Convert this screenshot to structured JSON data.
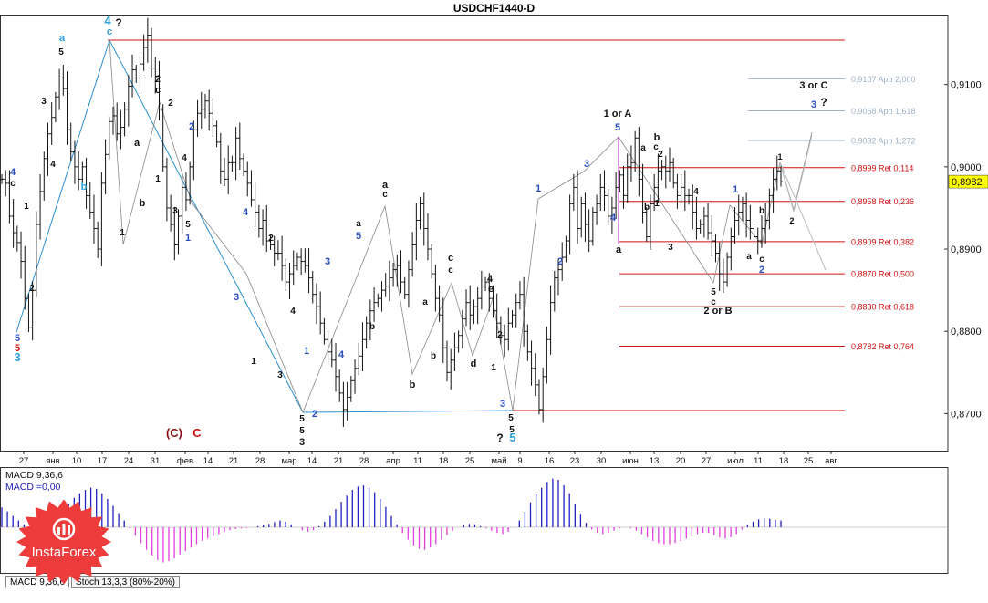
{
  "title": "USDCHF1440-D",
  "chart_data": {
    "type": "candlestick",
    "symbol": "USDCHF",
    "timeframe": "D1",
    "ylim": [
      0.8655,
      0.9185
    ],
    "y_ticks": [
      "0,9100",
      "0,9000",
      "0,8900",
      "0,8800",
      "0,8700"
    ],
    "y_tick_values": [
      0.91,
      0.9,
      0.89,
      0.88,
      0.87
    ],
    "current_price": "0,8982",
    "x_tick_labels": [
      "27",
      "янв",
      "10",
      "17",
      "24",
      "31",
      "фев",
      "14",
      "21",
      "28",
      "мар",
      "14",
      "21",
      "28",
      "апр",
      "11",
      "18",
      "25",
      "май",
      "9",
      "16",
      "23",
      "30",
      "июн",
      "13",
      "20",
      "27",
      "июл",
      "11",
      "18",
      "25",
      "авг"
    ],
    "close_path": [
      0.8985,
      0.898,
      0.894,
      0.892,
      0.8908,
      0.8885,
      0.884,
      0.8805,
      0.885,
      0.893,
      0.897,
      0.901,
      0.904,
      0.906,
      0.9085,
      0.9108,
      0.9095,
      0.9045,
      0.9018,
      0.9,
      0.8985,
      0.9,
      0.8965,
      0.8945,
      0.8925,
      0.89,
      0.898,
      0.9015,
      0.9055,
      0.9062,
      0.904,
      0.9048,
      0.907,
      0.9098,
      0.9118,
      0.9108,
      0.9125,
      0.9145,
      0.916,
      0.912,
      0.911,
      0.907,
      0.9,
      0.895,
      0.893,
      0.8905,
      0.894,
      0.8975,
      0.896,
      0.9,
      0.9045,
      0.9065,
      0.907,
      0.908,
      0.9065,
      0.905,
      0.903,
      0.8995,
      0.8985,
      0.9005,
      0.9005,
      0.9035,
      0.901,
      0.8995,
      0.898,
      0.896,
      0.8945,
      0.8925,
      0.8935,
      0.891,
      0.8905,
      0.8895,
      0.8895,
      0.888,
      0.886,
      0.887,
      0.888,
      0.889,
      0.8885,
      0.888,
      0.8865,
      0.8845,
      0.883,
      0.881,
      0.879,
      0.8775,
      0.8765,
      0.8745,
      0.8725,
      0.8705,
      0.872,
      0.874,
      0.8755,
      0.877,
      0.879,
      0.881,
      0.8825,
      0.8835,
      0.884,
      0.885,
      0.8855,
      0.8865,
      0.8875,
      0.888,
      0.886,
      0.8845,
      0.8875,
      0.8905,
      0.8935,
      0.8955,
      0.8925,
      0.89,
      0.887,
      0.884,
      0.882,
      0.878,
      0.875,
      0.8765,
      0.878,
      0.8795,
      0.8815,
      0.8835,
      0.882,
      0.883,
      0.884,
      0.8855,
      0.886,
      0.884,
      0.8825,
      0.881,
      0.8795,
      0.879,
      0.881,
      0.882,
      0.8835,
      0.8845,
      0.88,
      0.8775,
      0.8755,
      0.8735,
      0.8705,
      0.8745,
      0.879,
      0.8835,
      0.8865,
      0.8875,
      0.889,
      0.891,
      0.8955,
      0.8975,
      0.8925,
      0.8955,
      0.893,
      0.891,
      0.8945,
      0.8955,
      0.8975,
      0.8965,
      0.894,
      0.895,
      0.8975,
      0.899,
      0.8965,
      0.9,
      0.9005,
      0.9035,
      0.8985,
      0.8945,
      0.8915,
      0.8955,
      0.8975,
      0.8995,
      0.9,
      0.8995,
      0.9005,
      0.898,
      0.8965,
      0.8975,
      0.8965,
      0.8965,
      0.8945,
      0.8925,
      0.893,
      0.894,
      0.892,
      0.891,
      0.8895,
      0.887,
      0.886,
      0.889,
      0.8915,
      0.8935,
      0.8945,
      0.8955,
      0.8935,
      0.8925,
      0.8915,
      0.891,
      0.8925,
      0.8935,
      0.8965,
      0.8985,
      0.8995,
      0.8982
    ],
    "price_levels": [
      {
        "value": 0.9107,
        "label": "0,9107 App 2,000",
        "color": "#9fb3c8"
      },
      {
        "value": 0.9068,
        "label": "0,9068 App 1,618",
        "color": "#9fb3c8"
      },
      {
        "value": 0.9032,
        "label": "0,9032 App 1,272",
        "color": "#9fb3c8"
      },
      {
        "value": 0.8999,
        "label": "0,8999 Ret 0,114",
        "color": "#d01010"
      },
      {
        "value": 0.8958,
        "label": "0,8958 Ret 0,236",
        "color": "#d01010"
      },
      {
        "value": 0.8909,
        "label": "0,8909 Ret 0,382",
        "color": "#d01010"
      },
      {
        "value": 0.887,
        "label": "0,8870 Ret 0,500",
        "color": "#d01010"
      },
      {
        "value": 0.883,
        "label": "0,8830 Ret 0,618",
        "color": "#d01010"
      },
      {
        "value": 0.8782,
        "label": "0,8782 Ret 0,764",
        "color": "#d01010"
      }
    ],
    "annotations": [
      {
        "text": "4",
        "x": 118,
        "y": 27,
        "color": "#2aa0d8",
        "size": 13
      },
      {
        "text": "?",
        "x": 130,
        "y": 29,
        "color": "#111",
        "size": 12
      },
      {
        "text": "c",
        "x": 120,
        "y": 38,
        "color": "#2aa0d8",
        "size": 11
      },
      {
        "text": "a",
        "x": 68,
        "y": 45,
        "color": "#2aa0d8",
        "size": 11
      },
      {
        "text": "5",
        "x": 67,
        "y": 60,
        "color": "#111",
        "size": 10
      },
      {
        "text": "3",
        "x": 48,
        "y": 114,
        "color": "#111",
        "size": 10
      },
      {
        "text": "4",
        "x": 58,
        "y": 183,
        "color": "#111",
        "size": 10
      },
      {
        "text": "4",
        "x": 14,
        "y": 192,
        "color": "#2a4fc0",
        "size": 11
      },
      {
        "text": "c",
        "x": 14,
        "y": 204,
        "color": "#111",
        "size": 10
      },
      {
        "text": "b",
        "x": 92,
        "y": 208,
        "color": "#2aa0d8",
        "size": 11
      },
      {
        "text": "1",
        "x": 29,
        "y": 229,
        "color": "#111",
        "size": 10
      },
      {
        "text": "2",
        "x": 35,
        "y": 319,
        "color": "#111",
        "size": 10
      },
      {
        "text": "5",
        "x": 19,
        "y": 374,
        "color": "#2a4fc0",
        "size": 11
      },
      {
        "text": "5",
        "x": 19,
        "y": 385,
        "color": "#d01010",
        "size": 11
      },
      {
        "text": "3",
        "x": 19,
        "y": 396,
        "color": "#2aa0d8",
        "size": 13
      },
      {
        "text": "2",
        "x": 173,
        "y": 90,
        "color": "#111",
        "size": 11
      },
      {
        "text": "c",
        "x": 173,
        "y": 102,
        "color": "#111",
        "size": 11
      },
      {
        "text": "2",
        "x": 187,
        "y": 116,
        "color": "#111",
        "size": 10
      },
      {
        "text": "a",
        "x": 150,
        "y": 160,
        "color": "#111",
        "size": 11
      },
      {
        "text": "2",
        "x": 210,
        "y": 142,
        "color": "#2a4fc0",
        "size": 11
      },
      {
        "text": "1",
        "x": 173,
        "y": 199,
        "color": "#111",
        "size": 10
      },
      {
        "text": "4",
        "x": 202,
        "y": 176,
        "color": "#111",
        "size": 10
      },
      {
        "text": "3",
        "x": 192,
        "y": 234,
        "color": "#111",
        "size": 10
      },
      {
        "text": "5",
        "x": 206,
        "y": 249,
        "color": "#111",
        "size": 10
      },
      {
        "text": "1",
        "x": 206,
        "y": 264,
        "color": "#2a4fc0",
        "size": 11
      },
      {
        "text": "b",
        "x": 156,
        "y": 226,
        "color": "#111",
        "size": 11
      },
      {
        "text": "1",
        "x": 134,
        "y": 258,
        "color": "#111",
        "size": 10
      },
      {
        "text": "4",
        "x": 269,
        "y": 236,
        "color": "#2a4fc0",
        "size": 11
      },
      {
        "text": "2",
        "x": 297,
        "y": 264,
        "color": "#111",
        "size": 10
      },
      {
        "text": "3",
        "x": 259,
        "y": 329,
        "color": "#2a4fc0",
        "size": 11
      },
      {
        "text": "1",
        "x": 278,
        "y": 399,
        "color": "#111",
        "size": 10
      },
      {
        "text": "4",
        "x": 321,
        "y": 344,
        "color": "#111",
        "size": 10
      },
      {
        "text": "3",
        "x": 307,
        "y": 414,
        "color": "#111",
        "size": 10
      },
      {
        "text": "3",
        "x": 359,
        "y": 290,
        "color": "#2a4fc0",
        "size": 11
      },
      {
        "text": "1",
        "x": 336,
        "y": 388,
        "color": "#2a4fc0",
        "size": 11
      },
      {
        "text": "4",
        "x": 374,
        "y": 392,
        "color": "#2a4fc0",
        "size": 11
      },
      {
        "text": "2",
        "x": 345,
        "y": 457,
        "color": "#2a4fc0",
        "size": 11
      },
      {
        "text": "5",
        "x": 331,
        "y": 462,
        "color": "#111",
        "size": 10
      },
      {
        "text": "5",
        "x": 331,
        "y": 475,
        "color": "#111",
        "size": 10
      },
      {
        "text": "3",
        "x": 331,
        "y": 488,
        "color": "#111",
        "size": 11
      },
      {
        "text": "(C)",
        "x": 191,
        "y": 479,
        "color": "#8b1010",
        "size": 13
      },
      {
        "text": "C",
        "x": 216,
        "y": 479,
        "color": "#d01010",
        "size": 13
      },
      {
        "text": "a",
        "x": 422,
        "y": 206,
        "color": "#111",
        "size": 11
      },
      {
        "text": "c",
        "x": 422,
        "y": 216,
        "color": "#111",
        "size": 10
      },
      {
        "text": "a",
        "x": 393,
        "y": 248,
        "color": "#111",
        "size": 10
      },
      {
        "text": "5",
        "x": 393,
        "y": 262,
        "color": "#2a4fc0",
        "size": 11
      },
      {
        "text": "b",
        "x": 408,
        "y": 361,
        "color": "#111",
        "size": 10
      },
      {
        "text": "b",
        "x": 452,
        "y": 425,
        "color": "#111",
        "size": 11
      },
      {
        "text": "a",
        "x": 466,
        "y": 334,
        "color": "#111",
        "size": 10
      },
      {
        "text": "b",
        "x": 475,
        "y": 393,
        "color": "#111",
        "size": 10
      },
      {
        "text": "c",
        "x": 494,
        "y": 286,
        "color": "#111",
        "size": 11
      },
      {
        "text": "c",
        "x": 494,
        "y": 299,
        "color": "#111",
        "size": 10
      },
      {
        "text": "4",
        "x": 537,
        "y": 309,
        "color": "#111",
        "size": 11
      },
      {
        "text": "e",
        "x": 538,
        "y": 320,
        "color": "#111",
        "size": 11
      },
      {
        "text": "d",
        "x": 519,
        "y": 402,
        "color": "#111",
        "size": 11
      },
      {
        "text": "2",
        "x": 548,
        "y": 370,
        "color": "#111",
        "size": 10
      },
      {
        "text": "1",
        "x": 541,
        "y": 406,
        "color": "#111",
        "size": 10
      },
      {
        "text": "3",
        "x": 551,
        "y": 446,
        "color": "#2a4fc0",
        "size": 11
      },
      {
        "text": "5",
        "x": 560,
        "y": 461,
        "color": "#111",
        "size": 10
      },
      {
        "text": "5",
        "x": 561,
        "y": 474,
        "color": "#111",
        "size": 10
      },
      {
        "text": "?",
        "x": 548,
        "y": 484,
        "color": "#111",
        "size": 12
      },
      {
        "text": "5",
        "x": 562,
        "y": 484,
        "color": "#2aa0d8",
        "size": 13
      },
      {
        "text": "1",
        "x": 590,
        "y": 210,
        "color": "#2a4fc0",
        "size": 11
      },
      {
        "text": "2",
        "x": 614,
        "y": 290,
        "color": "#2a4fc0",
        "size": 11
      },
      {
        "text": "3",
        "x": 643,
        "y": 183,
        "color": "#2a4fc0",
        "size": 11
      },
      {
        "text": "1 or A",
        "x": 677,
        "y": 128,
        "color": "#111",
        "size": 11
      },
      {
        "text": "5",
        "x": 677,
        "y": 143,
        "color": "#2a4fc0",
        "size": 11
      },
      {
        "text": "4",
        "x": 672,
        "y": 242,
        "color": "#2a4fc0",
        "size": 11
      },
      {
        "text": "a",
        "x": 678,
        "y": 277,
        "color": "#111",
        "size": 11
      },
      {
        "text": "b",
        "x": 720,
        "y": 154,
        "color": "#111",
        "size": 11
      },
      {
        "text": "a",
        "x": 705,
        "y": 165,
        "color": "#111",
        "size": 10
      },
      {
        "text": "c",
        "x": 719,
        "y": 164,
        "color": "#111",
        "size": 10
      },
      {
        "text": "2",
        "x": 724,
        "y": 172,
        "color": "#111",
        "size": 10
      },
      {
        "text": "1",
        "x": 720,
        "y": 226,
        "color": "#111",
        "size": 10
      },
      {
        "text": "b",
        "x": 709,
        "y": 230,
        "color": "#111",
        "size": 10
      },
      {
        "text": "4",
        "x": 763,
        "y": 213,
        "color": "#111",
        "size": 10
      },
      {
        "text": "3",
        "x": 735,
        "y": 274,
        "color": "#111",
        "size": 10
      },
      {
        "text": "5",
        "x": 782,
        "y": 323,
        "color": "#111",
        "size": 10
      },
      {
        "text": "c",
        "x": 782,
        "y": 334,
        "color": "#111",
        "size": 10
      },
      {
        "text": "2 or B",
        "x": 787,
        "y": 344,
        "color": "#111",
        "size": 11
      },
      {
        "text": "1",
        "x": 806,
        "y": 211,
        "color": "#2a4fc0",
        "size": 11
      },
      {
        "text": "b",
        "x": 835,
        "y": 234,
        "color": "#111",
        "size": 10
      },
      {
        "text": "a",
        "x": 821,
        "y": 284,
        "color": "#111",
        "size": 10
      },
      {
        "text": "c",
        "x": 835,
        "y": 287,
        "color": "#111",
        "size": 10
      },
      {
        "text": "2",
        "x": 835,
        "y": 299,
        "color": "#2a4fc0",
        "size": 11
      },
      {
        "text": "1",
        "x": 855,
        "y": 175,
        "color": "#111",
        "size": 9
      },
      {
        "text": "2",
        "x": 868,
        "y": 245,
        "color": "#111",
        "size": 9
      },
      {
        "text": "3 or C",
        "x": 892,
        "y": 97,
        "color": "#111",
        "size": 11
      },
      {
        "text": "3",
        "x": 892,
        "y": 118,
        "color": "#2a4fc0",
        "size": 11
      },
      {
        "text": "?",
        "x": 903,
        "y": 116,
        "color": "#111",
        "size": 12
      }
    ],
    "macd": {
      "label1": "MACD 9,36,6",
      "label2": "MACD =0,00",
      "values": [
        0.35,
        0.28,
        0.2,
        0.12,
        0.05,
        -0.05,
        -0.1,
        -0.08,
        0.02,
        0.1,
        0.2,
        0.32,
        0.42,
        0.52,
        0.6,
        0.66,
        0.7,
        0.68,
        0.6,
        0.5,
        0.38,
        0.25,
        0.12,
        -0.02,
        -0.15,
        -0.28,
        -0.4,
        -0.5,
        -0.58,
        -0.62,
        -0.6,
        -0.55,
        -0.48,
        -0.42,
        -0.36,
        -0.3,
        -0.24,
        -0.2,
        -0.16,
        -0.12,
        -0.08,
        -0.05,
        -0.03,
        -0.02,
        -0.01,
        0.0,
        0.02,
        0.04,
        0.06,
        0.09,
        0.12,
        0.1,
        0.05,
        0.0,
        -0.05,
        -0.08,
        -0.05,
        0.02,
        0.1,
        0.2,
        0.32,
        0.45,
        0.56,
        0.66,
        0.72,
        0.74,
        0.7,
        0.62,
        0.5,
        0.36,
        0.2,
        0.05,
        -0.1,
        -0.22,
        -0.32,
        -0.38,
        -0.4,
        -0.36,
        -0.3,
        -0.22,
        -0.14,
        -0.06,
        0.0,
        0.04,
        0.06,
        0.05,
        0.02,
        -0.02,
        -0.06,
        -0.1,
        -0.12,
        -0.08,
        0.0,
        0.12,
        0.28,
        0.44,
        0.58,
        0.7,
        0.8,
        0.86,
        0.84,
        0.74,
        0.6,
        0.42,
        0.24,
        0.08,
        -0.04,
        -0.1,
        -0.12,
        -0.1,
        -0.06,
        -0.02,
        0.0,
        -0.02,
        -0.06,
        -0.12,
        -0.18,
        -0.24,
        -0.28,
        -0.3,
        -0.3,
        -0.28,
        -0.24,
        -0.2,
        -0.16,
        -0.12,
        -0.1,
        -0.1,
        -0.14,
        -0.18,
        -0.2,
        -0.18,
        -0.12,
        -0.04,
        0.04,
        0.1,
        0.14,
        0.16,
        0.15,
        0.13,
        0.12
      ]
    }
  },
  "tabs": [
    "MACD 9,36,6",
    "Stoch 13,3,3 (80%-20%)"
  ],
  "logo_text": "InstaForex",
  "logo_color": "#ee3b3b"
}
